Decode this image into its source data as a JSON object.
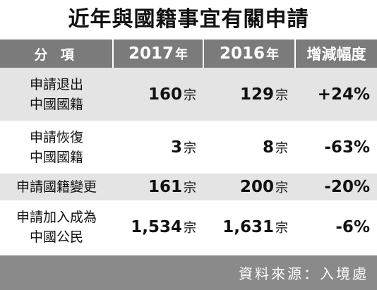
{
  "header": {
    "title": "近年與國籍事宜有關申請"
  },
  "table": {
    "columns": [
      "分 項",
      {
        "number": "2017",
        "unit": "年"
      },
      {
        "number": "2016",
        "unit": "年"
      },
      "增減幅度"
    ],
    "rows": [
      {
        "item": [
          "申請退出",
          "中國國籍"
        ],
        "y2017": {
          "number": "160",
          "unit": "宗"
        },
        "y2016": {
          "number": "129",
          "unit": "宗"
        },
        "change": "+24%"
      },
      {
        "item": [
          "申請恢復",
          "中國國籍"
        ],
        "y2017": {
          "number": "3",
          "unit": "宗"
        },
        "y2016": {
          "number": "8",
          "unit": "宗"
        },
        "change": "-63%"
      },
      {
        "item": [
          "申請國籍變更"
        ],
        "y2017": {
          "number": "161",
          "unit": "宗"
        },
        "y2016": {
          "number": "200",
          "unit": "宗"
        },
        "change": "-20%"
      },
      {
        "item": [
          "申請加入成為",
          "中國公民"
        ],
        "y2017": {
          "number": "1,534",
          "unit": "宗"
        },
        "y2016": {
          "number": "1,631",
          "unit": "宗"
        },
        "change": "-6%"
      }
    ]
  },
  "footer": {
    "source": "資料來源：入境處"
  }
}
